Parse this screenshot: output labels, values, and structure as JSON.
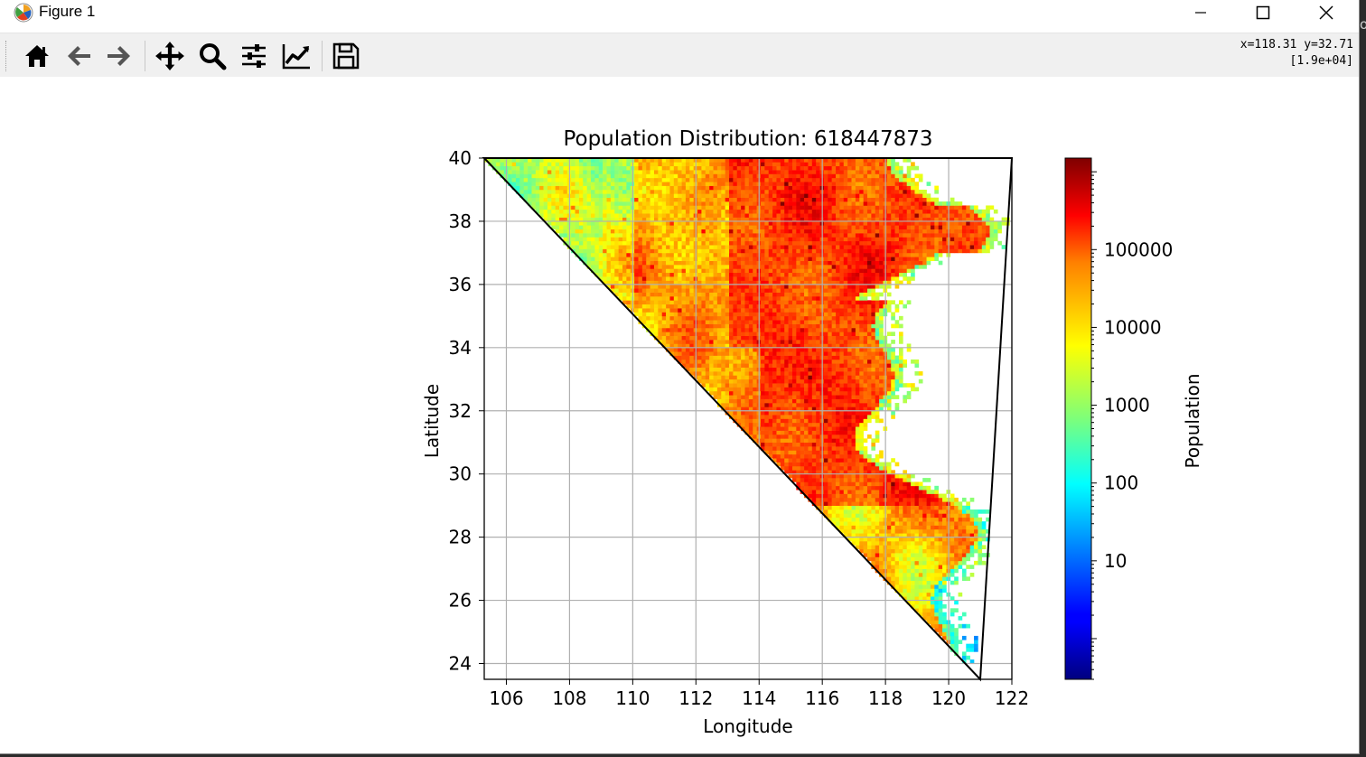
{
  "window": {
    "title": "Figure 1",
    "icons": {
      "app": "matplotlib-logo-icon",
      "minimize": "minimize-icon",
      "maximize": "maximize-icon",
      "close": "close-icon"
    }
  },
  "toolbar": {
    "buttons": [
      {
        "name": "home",
        "icon": "home-icon"
      },
      {
        "name": "back",
        "icon": "arrow-left-icon"
      },
      {
        "name": "forward",
        "icon": "arrow-right-icon"
      },
      {
        "name": "pan",
        "icon": "move-icon"
      },
      {
        "name": "zoom",
        "icon": "search-icon"
      },
      {
        "name": "configure-subplots",
        "icon": "sliders-icon"
      },
      {
        "name": "edit-axis",
        "icon": "line-chart-icon"
      },
      {
        "name": "save",
        "icon": "floppy-disk-icon"
      }
    ],
    "cursor_readout": "x=118.31 y=32.71",
    "value_readout": "[1.9e+04]"
  },
  "chart_data": {
    "type": "heatmap",
    "title": "Population Distribution: 618447873",
    "xlabel": "Longitude",
    "ylabel": "Latitude",
    "xlim": [
      105.3,
      122.0
    ],
    "ylim": [
      23.5,
      40.0
    ],
    "xticks": [
      "106",
      "108",
      "110",
      "112",
      "114",
      "116",
      "118",
      "120",
      "122"
    ],
    "yticks": [
      "24",
      "26",
      "28",
      "30",
      "32",
      "34",
      "36",
      "38",
      "40"
    ],
    "grid": true,
    "colormap": "jet",
    "color_scale": "log",
    "colorbar": {
      "label": "Population",
      "ticks": [
        "10",
        "100",
        "1000",
        "10000",
        "100000"
      ],
      "range": [
        0.3,
        1500000
      ]
    },
    "masked_triangle": [
      [
        105.3,
        40.0
      ],
      [
        121.0,
        23.5
      ],
      [
        122.0,
        40.0
      ]
    ],
    "dominant_colors": [
      "#ff8000",
      "#ff6a00",
      "#ffd000",
      "#ffff00",
      "#a0ff60",
      "#60f0a0",
      "#e00000"
    ]
  },
  "colors": {
    "background": "#ffffff",
    "toolbar_bg": "#f0f0f0",
    "text": "#000000",
    "grid": "#b0b0b0"
  }
}
